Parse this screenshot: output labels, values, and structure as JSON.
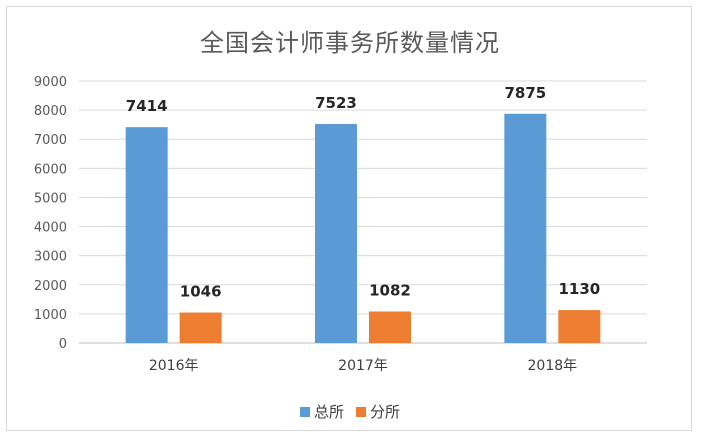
{
  "chart_data": {
    "type": "bar",
    "title": "全国会计师事务所数量情况",
    "categories": [
      "2016年",
      "2017年",
      "2018年"
    ],
    "series": [
      {
        "name": "总所",
        "values": [
          7414,
          7523,
          7875
        ],
        "color": "#5b9bd5"
      },
      {
        "name": "分所",
        "values": [
          1046,
          1082,
          1130
        ],
        "color": "#ed7d31"
      }
    ],
    "ylim": [
      0,
      9000
    ],
    "yticks": [
      0,
      1000,
      2000,
      3000,
      4000,
      5000,
      6000,
      7000,
      8000,
      9000
    ],
    "grid": true,
    "legend_position": "bottom"
  }
}
